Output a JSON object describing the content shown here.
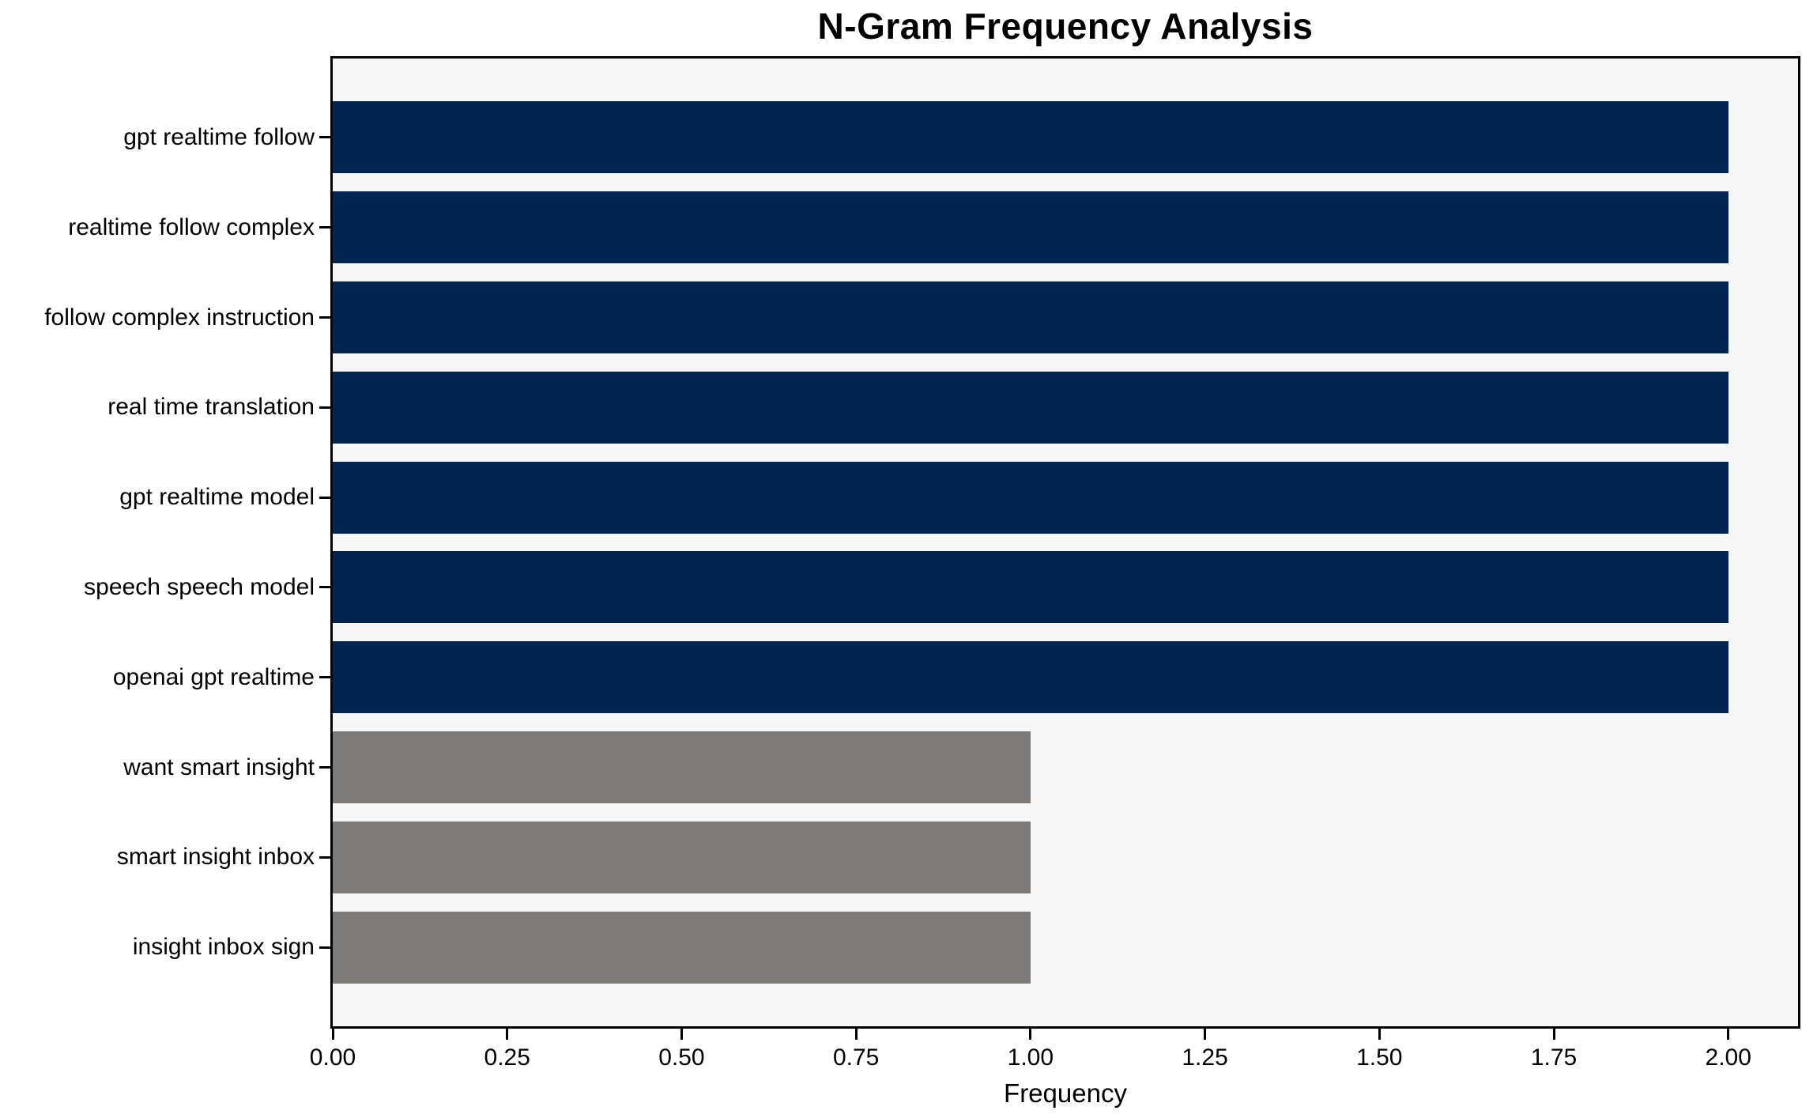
{
  "chart_data": {
    "type": "bar",
    "orientation": "horizontal",
    "title": "N-Gram Frequency Analysis",
    "xlabel": "Frequency",
    "ylabel": "",
    "categories": [
      "gpt realtime follow",
      "realtime follow complex",
      "follow complex instruction",
      "real time translation",
      "gpt realtime model",
      "speech speech model",
      "openai gpt realtime",
      "want smart insight",
      "smart insight inbox",
      "insight inbox sign"
    ],
    "values": [
      2,
      2,
      2,
      2,
      2,
      2,
      2,
      1,
      1,
      1
    ],
    "bar_colors": [
      "#022450",
      "#022450",
      "#022450",
      "#022450",
      "#022450",
      "#022450",
      "#022450",
      "#7b7a76",
      "#7b7a76",
      "#7b7a76"
    ],
    "xlim": [
      0,
      2.1
    ],
    "xticks": [
      0,
      0.25,
      0.5,
      0.75,
      1.0,
      1.25,
      1.5,
      1.75,
      2.0
    ],
    "xtick_labels": [
      "0.00",
      "0.25",
      "0.50",
      "0.75",
      "1.00",
      "1.25",
      "1.50",
      "1.75",
      "2.00"
    ],
    "grid": "off",
    "legend": "none",
    "colors": {
      "high_freq_bar": "#022450",
      "low_freq_bar": "#7b7a76",
      "plot_background": "#f7f7f7",
      "figure_background": "#ffffff",
      "spine": "#000000",
      "text": "#000000"
    }
  }
}
